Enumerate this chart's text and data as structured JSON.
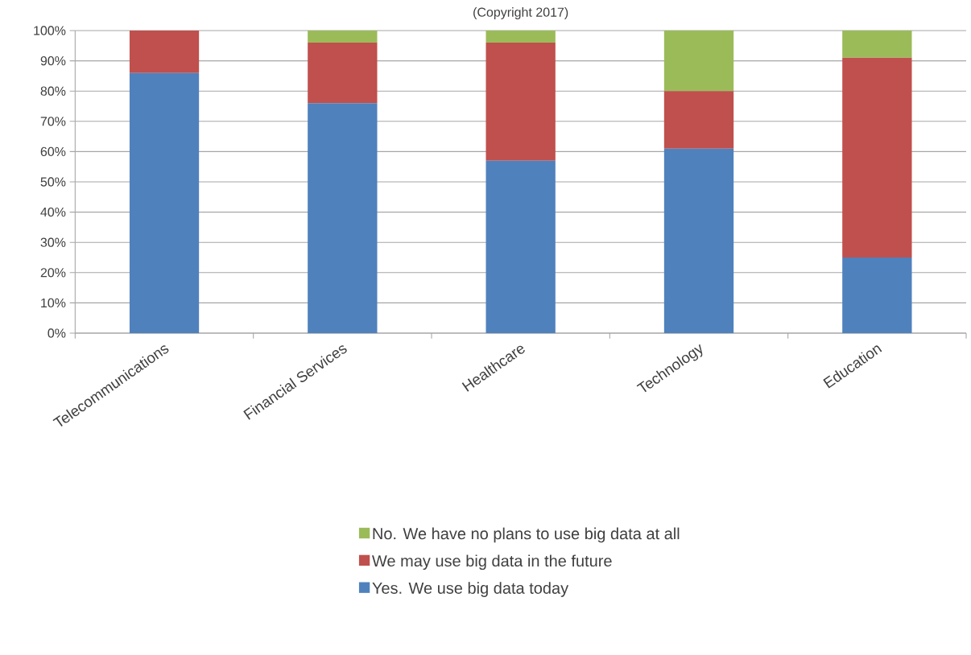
{
  "chart_data": {
    "type": "bar",
    "subtitle": "(Copyright 2017)",
    "categories": [
      "Telecommunications",
      "Financial Services",
      "Healthcare",
      "Technology",
      "Education"
    ],
    "stacked": true,
    "series": [
      {
        "name": "Yes. We use big data today",
        "color": "#4f81bd",
        "values": [
          86,
          76,
          57,
          61,
          25
        ]
      },
      {
        "name": "We may use big data in the future",
        "color": "#c0504d",
        "values": [
          14,
          20,
          39,
          19,
          66
        ]
      },
      {
        "name": "No. We have no plans to use big data at all",
        "color": "#9bbb59",
        "values": [
          0,
          4,
          4,
          20,
          9
        ]
      }
    ],
    "ylim": [
      0,
      100
    ],
    "yticks": [
      {
        "value": 0,
        "label": "0%"
      },
      {
        "value": 10,
        "label": "10%"
      },
      {
        "value": 20,
        "label": "20%"
      },
      {
        "value": 30,
        "label": "30%"
      },
      {
        "value": 40,
        "label": "40%"
      },
      {
        "value": 50,
        "label": "50%"
      },
      {
        "value": 60,
        "label": "60%"
      },
      {
        "value": 70,
        "label": "70%"
      },
      {
        "value": 80,
        "label": "80%"
      },
      {
        "value": 90,
        "label": "90%"
      },
      {
        "value": 100,
        "label": "100%"
      }
    ],
    "grid": "y",
    "legend": "bottom"
  }
}
